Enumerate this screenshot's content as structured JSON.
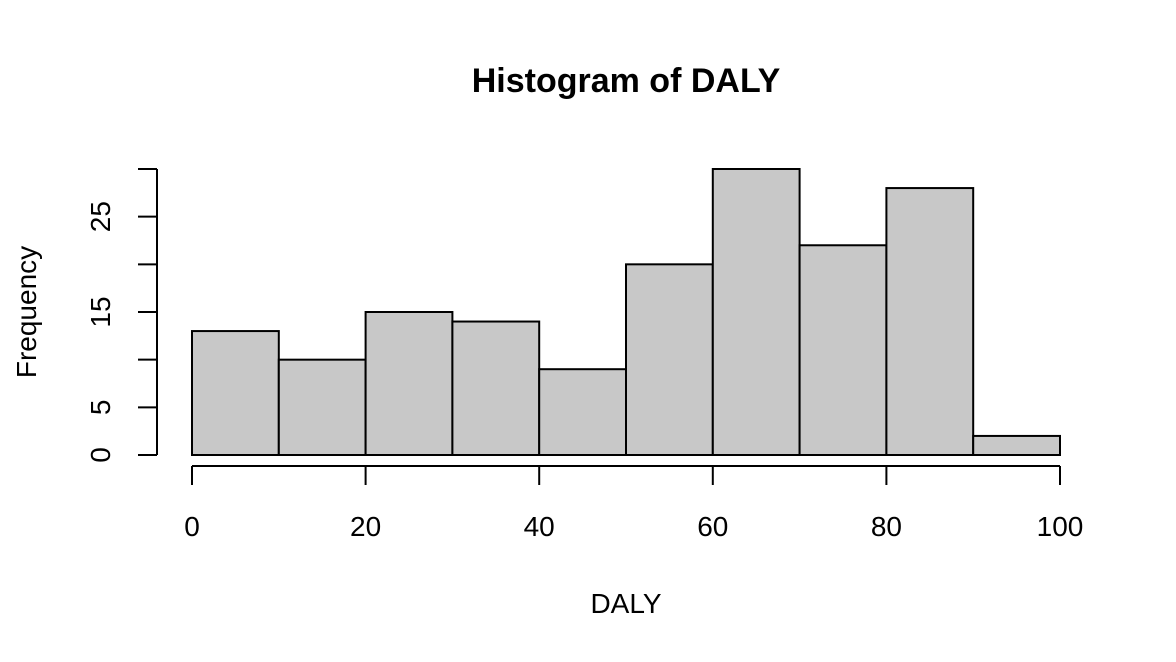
{
  "chart_data": {
    "type": "bar",
    "title": "Histogram of DALY",
    "xlabel": "DALY",
    "ylabel": "Frequency",
    "bins": [
      {
        "start": 0,
        "end": 10,
        "count": 13
      },
      {
        "start": 10,
        "end": 20,
        "count": 10
      },
      {
        "start": 20,
        "end": 30,
        "count": 15
      },
      {
        "start": 30,
        "end": 40,
        "count": 14
      },
      {
        "start": 40,
        "end": 50,
        "count": 9
      },
      {
        "start": 50,
        "end": 60,
        "count": 20
      },
      {
        "start": 60,
        "end": 70,
        "count": 30
      },
      {
        "start": 70,
        "end": 80,
        "count": 22
      },
      {
        "start": 80,
        "end": 90,
        "count": 28
      },
      {
        "start": 90,
        "end": 100,
        "count": 2
      }
    ],
    "xlim": [
      0,
      100
    ],
    "ylim": [
      0,
      30
    ],
    "x_ticks": [
      0,
      20,
      40,
      60,
      80,
      100
    ],
    "y_ticks": [
      0,
      5,
      10,
      15,
      20,
      25,
      30
    ],
    "y_tick_labels": [
      "0",
      "5",
      "",
      "15",
      "",
      "25",
      ""
    ],
    "grid": false,
    "colors": {
      "bar_fill": "#c8c8c8",
      "bar_stroke": "#000000"
    }
  }
}
